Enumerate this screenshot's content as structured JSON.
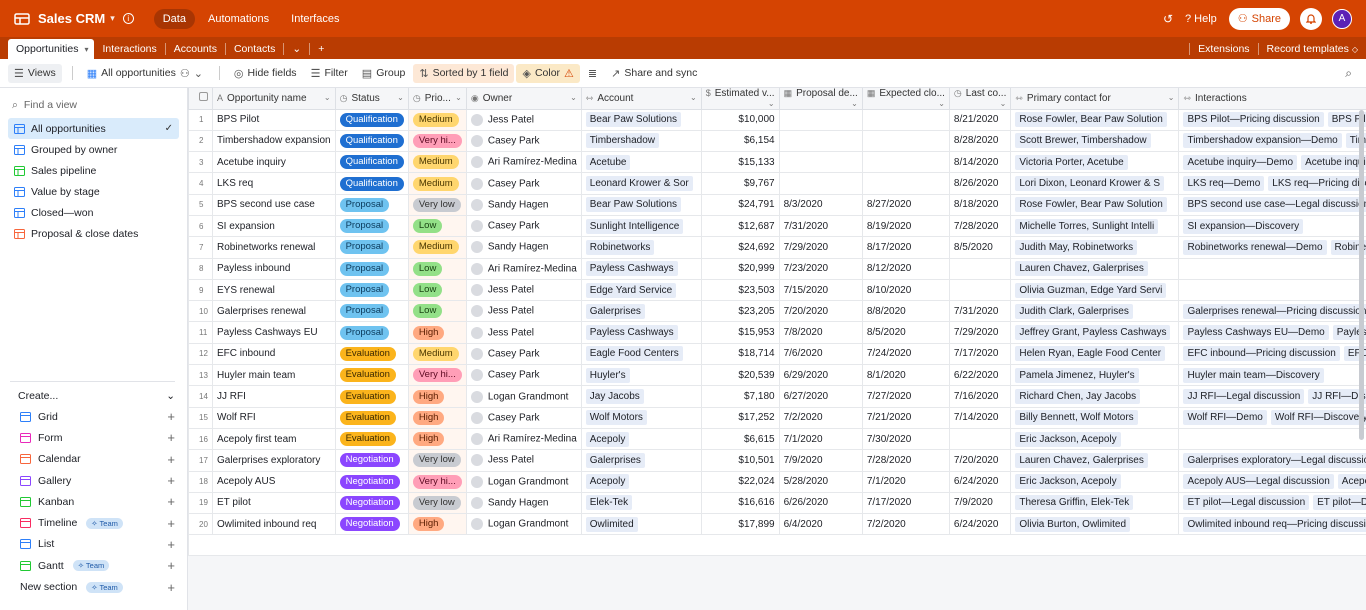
{
  "topbar": {
    "app_title": "Sales CRM",
    "nav": [
      "Data",
      "Automations",
      "Interfaces"
    ],
    "help_label": "Help",
    "share_label": "Share",
    "avatar_letter": "A"
  },
  "tabs": {
    "items": [
      "Opportunities",
      "Interactions",
      "Accounts",
      "Contacts"
    ],
    "extensions_label": "Extensions",
    "record_templates_label": "Record templates"
  },
  "toolbar": {
    "views_label": "Views",
    "view_name": "All opportunities",
    "hide_fields": "Hide fields",
    "filter": "Filter",
    "group": "Group",
    "sorted": "Sorted by 1 field",
    "color": "Color",
    "share_sync": "Share and sync"
  },
  "sidebar": {
    "find_placeholder": "Find a view",
    "views": [
      {
        "label": "All opportunities",
        "color": "#2d7ff9"
      },
      {
        "label": "Grouped by owner",
        "color": "#2d7ff9"
      },
      {
        "label": "Sales pipeline",
        "color": "#20c933"
      },
      {
        "label": "Value by stage",
        "color": "#2d7ff9"
      },
      {
        "label": "Closed—won",
        "color": "#2d7ff9"
      },
      {
        "label": "Proposal & close dates",
        "color": "#f7653b"
      }
    ],
    "create_label": "Create...",
    "create_items": [
      {
        "label": "Grid",
        "color": "#2d7ff9",
        "team": false
      },
      {
        "label": "Form",
        "color": "#e929ba",
        "team": false
      },
      {
        "label": "Calendar",
        "color": "#f7653b",
        "team": false
      },
      {
        "label": "Gallery",
        "color": "#8b46ff",
        "team": false
      },
      {
        "label": "Kanban",
        "color": "#20c933",
        "team": false
      },
      {
        "label": "Timeline",
        "color": "#f82b60",
        "team": true
      },
      {
        "label": "List",
        "color": "#2d7ff9",
        "team": false
      },
      {
        "label": "Gantt",
        "color": "#20c933",
        "team": true
      },
      {
        "label": "New section",
        "color": "",
        "team": true
      }
    ],
    "team_badge": "Team"
  },
  "columns": [
    "Opportunity name",
    "Status",
    "Prio...",
    "Owner",
    "Account",
    "Estimated v...",
    "Proposal de...",
    "Expected clo...",
    "Last co...",
    "Primary contact for",
    "Interactions"
  ],
  "status_colors": {
    "Qualification": {
      "bg": "#1f6fd1",
      "fg": "#ffffff"
    },
    "Proposal": {
      "bg": "#6fc3f0",
      "fg": "#0b3a5b"
    },
    "Evaluation": {
      "bg": "#fbb41c",
      "fg": "#3d2a00"
    },
    "Negotiation": {
      "bg": "#8b46ff",
      "fg": "#ffffff"
    }
  },
  "priority_colors": {
    "Medium": {
      "bg": "#ffd66e",
      "fg": "#4a3700"
    },
    "Very hi...": {
      "bg": "#ff9eb7",
      "fg": "#5c0a22"
    },
    "Very low": {
      "bg": "#c8cbd1",
      "fg": "#333333"
    },
    "Low": {
      "bg": "#93e088",
      "fg": "#1a4414"
    },
    "High": {
      "bg": "#ffa981",
      "fg": "#5a1d00"
    }
  },
  "rows": [
    {
      "name": "BPS Pilot",
      "status": "Qualification",
      "priority": "Medium",
      "owner": "Jess Patel",
      "account": "Bear Paw Solutions",
      "value": "$10,000",
      "proposal": "",
      "expected": "",
      "last": "8/21/2020",
      "contact": "Rose Fowler, Bear Paw Solution",
      "interactions": [
        "BPS Pilot—Pricing discussion",
        "BPS Pilot—Di"
      ]
    },
    {
      "name": "Timbershadow expansion",
      "status": "Qualification",
      "priority": "Very hi...",
      "owner": "Casey Park",
      "account": "Timbershadow",
      "value": "$6,154",
      "proposal": "",
      "expected": "",
      "last": "8/28/2020",
      "contact": "Scott Brewer, Timbershadow",
      "interactions": [
        "Timbershadow expansion—Demo",
        "Timbers"
      ]
    },
    {
      "name": "Acetube inquiry",
      "status": "Qualification",
      "priority": "Medium",
      "owner": "Ari Ramírez-Medina",
      "account": "Acetube",
      "value": "$15,133",
      "proposal": "",
      "expected": "",
      "last": "8/14/2020",
      "contact": "Victoria Porter, Acetube",
      "interactions": [
        "Acetube inquiry—Demo",
        "Acetube inquiry—"
      ]
    },
    {
      "name": "LKS req",
      "status": "Qualification",
      "priority": "Medium",
      "owner": "Casey Park",
      "account": "Leonard Krower & Sor",
      "value": "$9,767",
      "proposal": "",
      "expected": "",
      "last": "8/26/2020",
      "contact": "Lori Dixon, Leonard Krower & S",
      "interactions": [
        "LKS req—Demo",
        "LKS req—Pricing discussio"
      ]
    },
    {
      "name": "BPS second use case",
      "status": "Proposal",
      "priority": "Very low",
      "owner": "Sandy Hagen",
      "account": "Bear Paw Solutions",
      "value": "$24,791",
      "proposal": "8/3/2020",
      "expected": "8/27/2020",
      "last": "8/18/2020",
      "contact": "Rose Fowler, Bear Paw Solution",
      "interactions": [
        "BPS second use case—Legal discussion",
        "BP"
      ]
    },
    {
      "name": "SI expansion",
      "status": "Proposal",
      "priority": "Low",
      "owner": "Casey Park",
      "account": "Sunlight Intelligence",
      "value": "$12,687",
      "proposal": "7/31/2020",
      "expected": "8/19/2020",
      "last": "7/28/2020",
      "contact": "Michelle Torres, Sunlight Intelli",
      "interactions": [
        "SI expansion—Discovery"
      ]
    },
    {
      "name": "Robinetworks renewal",
      "status": "Proposal",
      "priority": "Medium",
      "owner": "Sandy Hagen",
      "account": "Robinetworks",
      "value": "$24,692",
      "proposal": "7/29/2020",
      "expected": "8/17/2020",
      "last": "8/5/2020",
      "contact": "Judith May, Robinetworks",
      "interactions": [
        "Robinetworks renewal—Demo",
        "Robinetwor"
      ]
    },
    {
      "name": "Payless inbound",
      "status": "Proposal",
      "priority": "Low",
      "owner": "Ari Ramírez-Medina",
      "account": "Payless Cashways",
      "value": "$20,999",
      "proposal": "7/23/2020",
      "expected": "8/12/2020",
      "last": "",
      "contact": "Lauren Chavez, Galerprises",
      "interactions": []
    },
    {
      "name": "EYS renewal",
      "status": "Proposal",
      "priority": "Low",
      "owner": "Jess Patel",
      "account": "Edge Yard Service",
      "value": "$23,503",
      "proposal": "7/15/2020",
      "expected": "8/10/2020",
      "last": "",
      "contact": "Olivia Guzman, Edge Yard Servi",
      "interactions": []
    },
    {
      "name": "Galerprises renewal",
      "status": "Proposal",
      "priority": "Low",
      "owner": "Jess Patel",
      "account": "Galerprises",
      "value": "$23,205",
      "proposal": "7/20/2020",
      "expected": "8/8/2020",
      "last": "7/31/2020",
      "contact": "Judith Clark, Galerprises",
      "interactions": [
        "Galerprises renewal—Pricing discussion",
        "Ga"
      ]
    },
    {
      "name": "Payless Cashways EU",
      "status": "Proposal",
      "priority": "High",
      "owner": "Jess Patel",
      "account": "Payless Cashways",
      "value": "$15,953",
      "proposal": "7/8/2020",
      "expected": "8/5/2020",
      "last": "7/29/2020",
      "contact": "Jeffrey Grant, Payless Cashways",
      "interactions": [
        "Payless Cashways EU—Demo",
        "Payless Cash"
      ]
    },
    {
      "name": "EFC inbound",
      "status": "Evaluation",
      "priority": "Medium",
      "owner": "Casey Park",
      "account": "Eagle Food Centers",
      "value": "$18,714",
      "proposal": "7/6/2020",
      "expected": "7/24/2020",
      "last": "7/17/2020",
      "contact": "Helen Ryan, Eagle Food Center",
      "interactions": [
        "EFC inbound—Pricing discussion",
        "EFC inbo"
      ]
    },
    {
      "name": "Huyler main team",
      "status": "Evaluation",
      "priority": "Very hi...",
      "owner": "Casey Park",
      "account": "Huyler's",
      "value": "$20,539",
      "proposal": "6/29/2020",
      "expected": "8/1/2020",
      "last": "6/22/2020",
      "contact": "Pamela Jimenez, Huyler's",
      "interactions": [
        "Huyler main team—Discovery"
      ]
    },
    {
      "name": "JJ RFI",
      "status": "Evaluation",
      "priority": "High",
      "owner": "Logan Grandmont",
      "account": "Jay Jacobs",
      "value": "$7,180",
      "proposal": "6/27/2020",
      "expected": "7/27/2020",
      "last": "7/16/2020",
      "contact": "Richard Chen, Jay Jacobs",
      "interactions": [
        "JJ RFI—Legal discussion",
        "JJ RFI—Discovery"
      ]
    },
    {
      "name": "Wolf RFI",
      "status": "Evaluation",
      "priority": "High",
      "owner": "Casey Park",
      "account": "Wolf Motors",
      "value": "$17,252",
      "proposal": "7/2/2020",
      "expected": "7/21/2020",
      "last": "7/14/2020",
      "contact": "Billy Bennett, Wolf Motors",
      "interactions": [
        "Wolf RFI—Demo",
        "Wolf RFI—Discovery"
      ]
    },
    {
      "name": "Acepoly first team",
      "status": "Evaluation",
      "priority": "High",
      "owner": "Ari Ramírez-Medina",
      "account": "Acepoly",
      "value": "$6,615",
      "proposal": "7/1/2020",
      "expected": "7/30/2020",
      "last": "",
      "contact": "Eric Jackson, Acepoly",
      "interactions": []
    },
    {
      "name": "Galerprises exploratory",
      "status": "Negotiation",
      "priority": "Very low",
      "owner": "Jess Patel",
      "account": "Galerprises",
      "value": "$10,501",
      "proposal": "7/9/2020",
      "expected": "7/28/2020",
      "last": "7/20/2020",
      "contact": "Lauren Chavez, Galerprises",
      "interactions": [
        "Galerprises exploratory—Legal discussion"
      ]
    },
    {
      "name": "Acepoly AUS",
      "status": "Negotiation",
      "priority": "Very hi...",
      "owner": "Logan Grandmont",
      "account": "Acepoly",
      "value": "$22,024",
      "proposal": "5/28/2020",
      "expected": "7/1/2020",
      "last": "6/24/2020",
      "contact": "Eric Jackson, Acepoly",
      "interactions": [
        "Acepoly AUS—Legal discussion",
        "Acepoly A"
      ]
    },
    {
      "name": "ET pilot",
      "status": "Negotiation",
      "priority": "Very low",
      "owner": "Sandy Hagen",
      "account": "Elek-Tek",
      "value": "$16,616",
      "proposal": "6/26/2020",
      "expected": "7/17/2020",
      "last": "7/9/2020",
      "contact": "Theresa Griffin, Elek-Tek",
      "interactions": [
        "ET pilot—Legal discussion",
        "ET pilot—Demo"
      ]
    },
    {
      "name": "Owlimited inbound req",
      "status": "Negotiation",
      "priority": "High",
      "owner": "Logan Grandmont",
      "account": "Owlimited",
      "value": "$17,899",
      "proposal": "6/4/2020",
      "expected": "7/2/2020",
      "last": "6/24/2020",
      "contact": "Olivia Burton, Owlimited",
      "interactions": [
        "Owlimited inbound req—Pricing discussion"
      ]
    }
  ]
}
